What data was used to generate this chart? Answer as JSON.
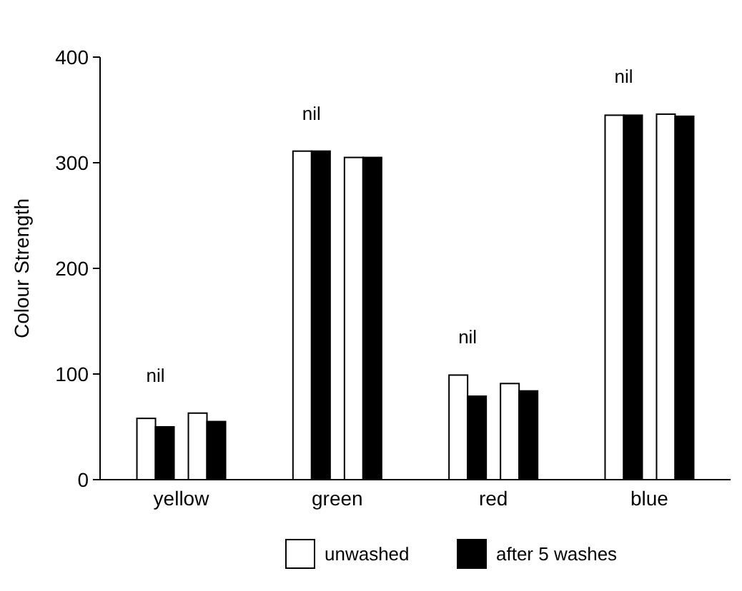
{
  "chart_data": {
    "type": "bar",
    "ylabel": "Colour Strength",
    "categories": [
      "yellow",
      "green",
      "red",
      "blue"
    ],
    "series": [
      {
        "name": "unwashed",
        "color": "#ffffff",
        "values": [
          58,
          311,
          99,
          345
        ]
      },
      {
        "name": "after 5 washes",
        "color": "#000000",
        "values": [
          50,
          311,
          79,
          345
        ]
      },
      {
        "color": "#ffffff",
        "values": [
          63,
          305,
          91,
          346
        ]
      },
      {
        "color": "#000000",
        "values": [
          55,
          305,
          84,
          344
        ]
      }
    ],
    "ylim": [
      0,
      400
    ],
    "yticks": [
      0,
      100,
      200,
      300,
      400
    ],
    "grid": false,
    "legend": "bottom",
    "annotations": [
      "nil",
      "nil",
      "nil",
      "nil"
    ]
  }
}
